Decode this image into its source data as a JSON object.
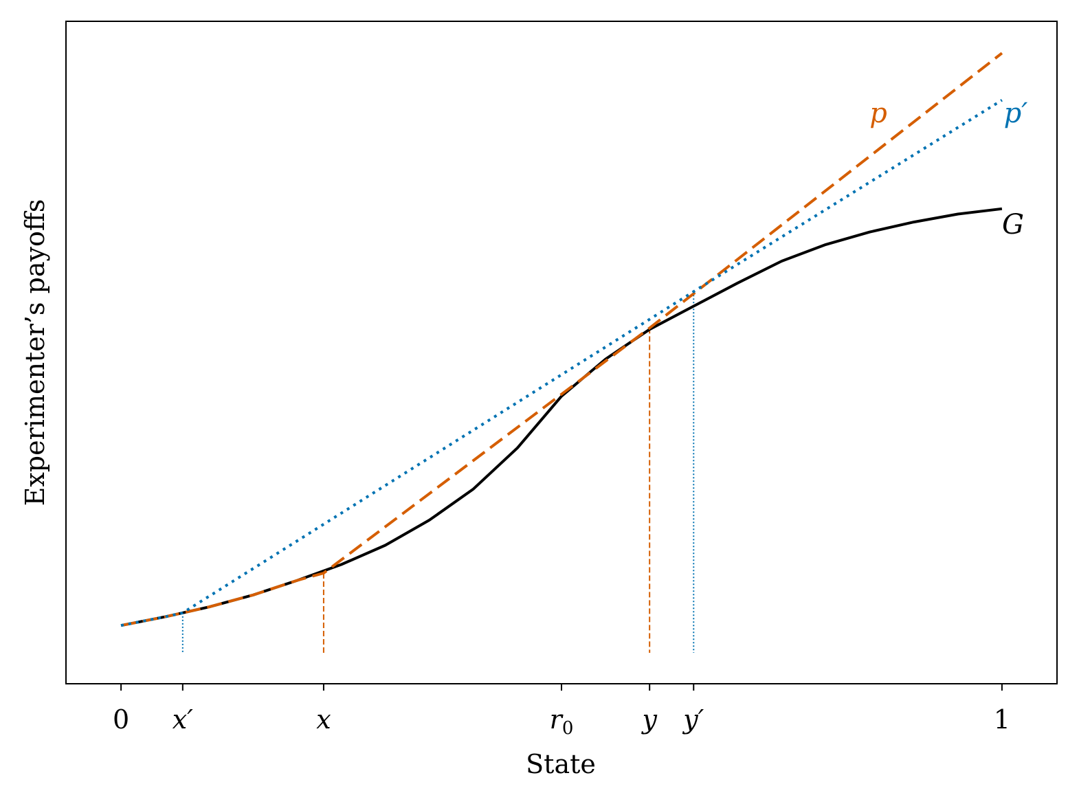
{
  "chart_data": {
    "type": "line",
    "title": "",
    "xlabel": "State",
    "ylabel": "Experimenter’s payoffs",
    "xlim": [
      -0.0625,
      1.0625
    ],
    "ylim": [
      0.0,
      1.0
    ],
    "x_ticks": [
      {
        "value": 0.0,
        "label": "0",
        "italic": false
      },
      {
        "value": 0.07,
        "label": "x′",
        "italic": true
      },
      {
        "value": 0.23,
        "label": "x",
        "italic": true
      },
      {
        "value": 0.5,
        "label": "r0",
        "italic": true
      },
      {
        "value": 0.6,
        "label": "y",
        "italic": true
      },
      {
        "value": 0.65,
        "label": "y′",
        "italic": true
      },
      {
        "value": 1.0,
        "label": "1",
        "italic": false
      }
    ],
    "y_ticks_shown": false,
    "grid": false,
    "colors": {
      "G": "#000000",
      "p": "#d55e00",
      "p_prime": "#0072b2"
    },
    "series": [
      {
        "name": "G",
        "style": "solid",
        "x": [
          0,
          0.05,
          0.1,
          0.15,
          0.2,
          0.25,
          0.3,
          0.35,
          0.4,
          0.45,
          0.5,
          0.55,
          0.6,
          0.65,
          0.7,
          0.75,
          0.8,
          0.85,
          0.9,
          0.95,
          1.0
        ],
        "y": [
          0.088,
          0.101,
          0.116,
          0.134,
          0.156,
          0.18,
          0.209,
          0.247,
          0.294,
          0.356,
          0.434,
          0.49,
          0.535,
          0.57,
          0.605,
          0.638,
          0.663,
          0.682,
          0.697,
          0.709,
          0.717
        ]
      },
      {
        "name": "p",
        "style": "dashed",
        "x": [
          0.0,
          0.05,
          0.1,
          0.15,
          0.2,
          0.23,
          0.6,
          1.0
        ],
        "y": [
          0.088,
          0.101,
          0.116,
          0.134,
          0.156,
          0.167,
          0.537,
          0.952
        ]
      },
      {
        "name": "p′",
        "style": "dotted",
        "x": [
          0.0,
          0.05,
          0.07,
          0.65,
          1.0
        ],
        "y": [
          0.088,
          0.101,
          0.107,
          0.592,
          0.881
        ]
      }
    ],
    "vertical_markers": [
      {
        "x": 0.07,
        "y_top": 0.107,
        "style": "dotted",
        "series": "p′"
      },
      {
        "x": 0.23,
        "y_top": 0.167,
        "style": "dashed",
        "series": "p"
      },
      {
        "x": 0.6,
        "y_top": 0.537,
        "style": "dashed",
        "series": "p"
      },
      {
        "x": 0.65,
        "y_top": 0.592,
        "style": "dotted",
        "series": "p′"
      }
    ],
    "annotations": [
      {
        "text": "p",
        "color_key": "p",
        "at_series": "p"
      },
      {
        "text": "p′",
        "color_key": "p_prime",
        "at_series": "p′"
      },
      {
        "text": "G",
        "color_key": "G",
        "at_series": "G"
      }
    ]
  }
}
